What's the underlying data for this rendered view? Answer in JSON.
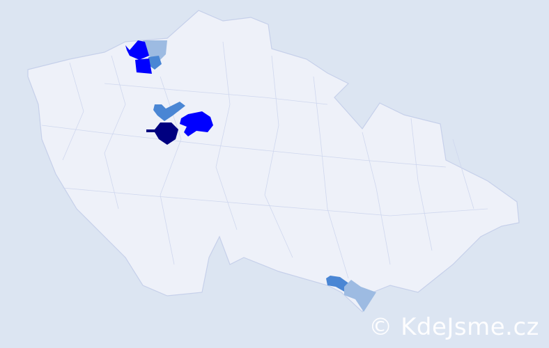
{
  "map": {
    "colors": {
      "background": "#dce5f2",
      "land": "#eef1f9",
      "border": "#c6d0ea",
      "level_highest": "#000080",
      "level_high": "#0000ff",
      "level_medium": "#4a86d4",
      "level_low": "#9dbbe2"
    }
  },
  "watermark": "© KdeJsme.cz"
}
